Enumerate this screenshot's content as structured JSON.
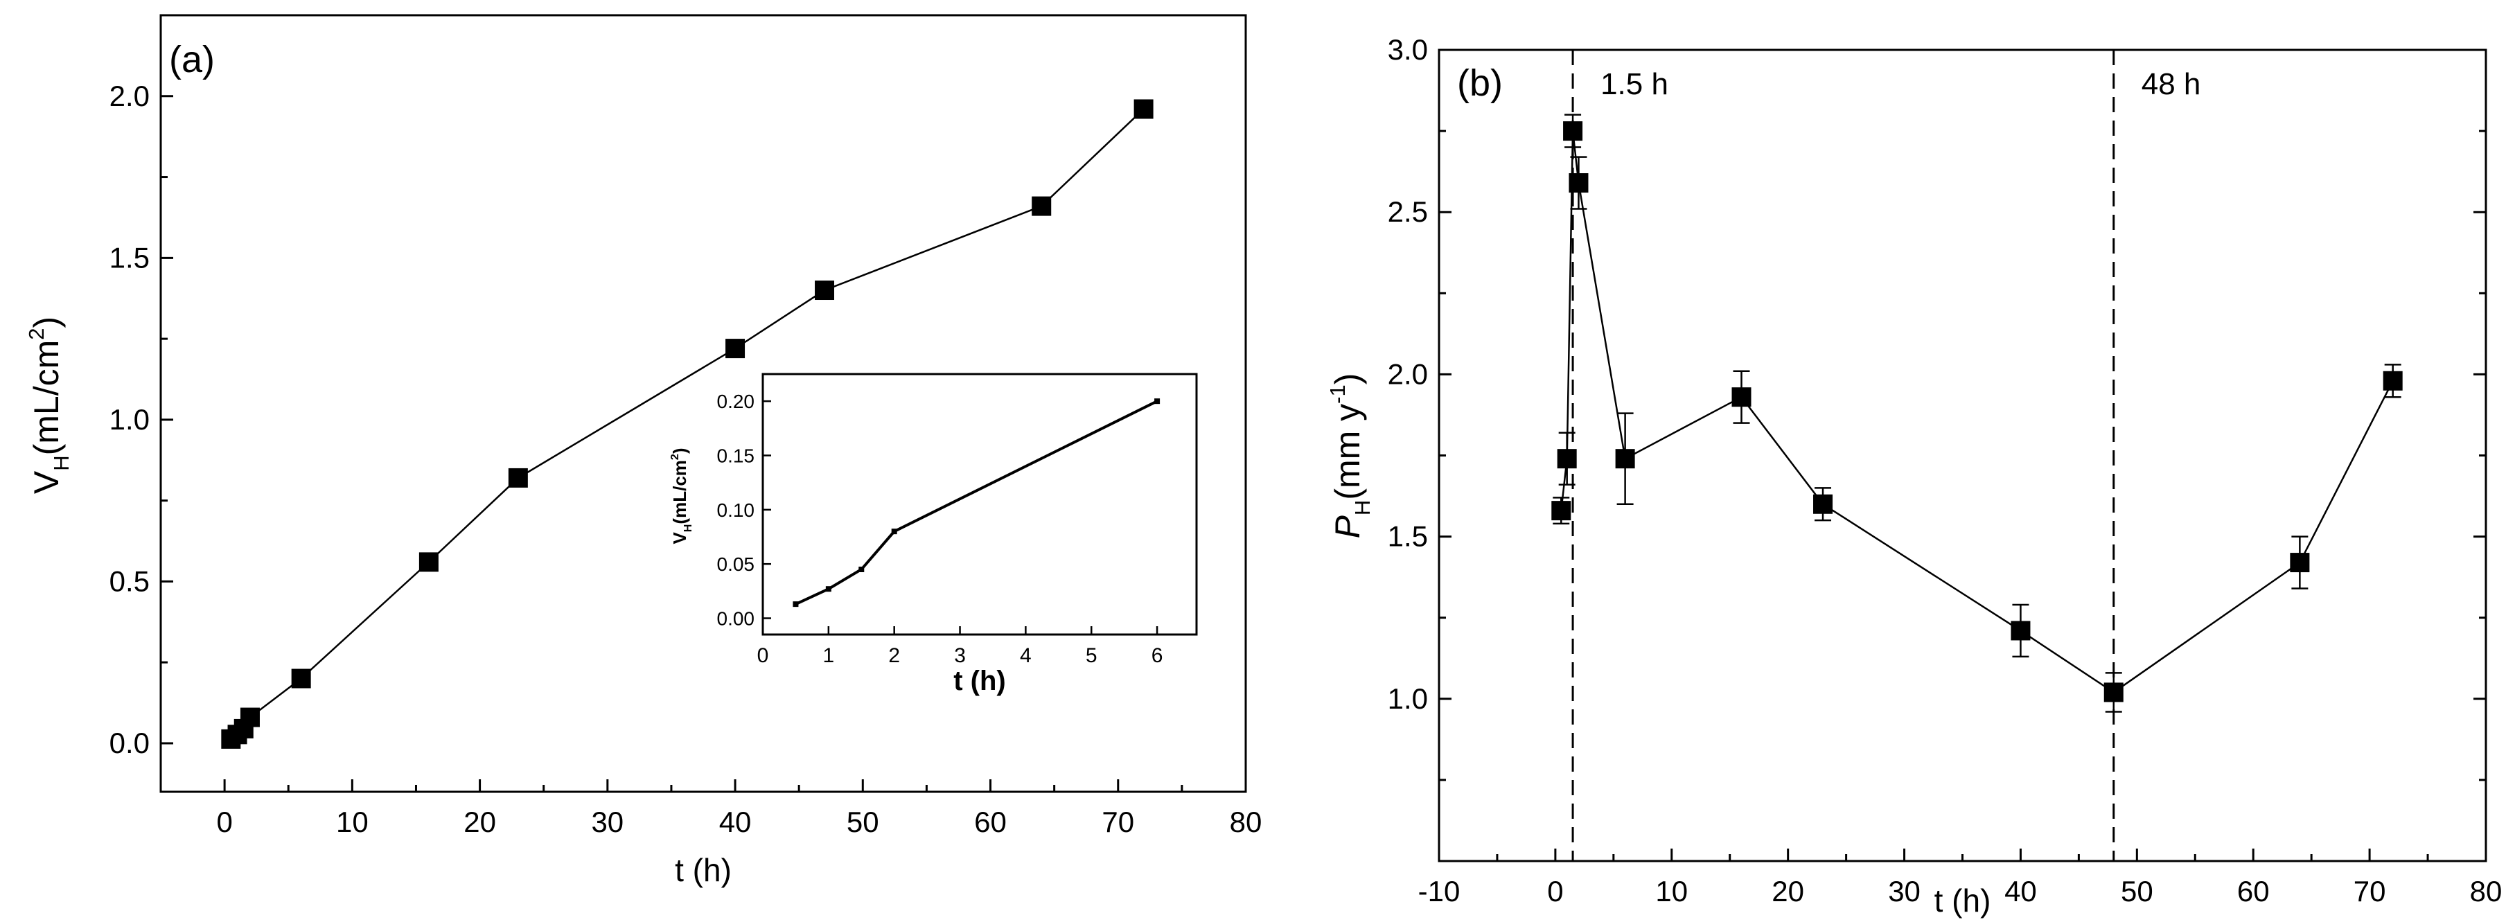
{
  "chart_data": [
    {
      "type": "line",
      "panel_label": "(a)",
      "xlabel": "t (h)",
      "ylabel": "V",
      "ylabel_sub": "H",
      "ylabel_unit": "(mL/cm",
      "ylabel_sup": "2",
      "ylabel_close": ")",
      "xlim": [
        -5,
        80
      ],
      "ylim": [
        -0.15,
        2.25
      ],
      "xticks": [
        "0",
        "10",
        "20",
        "30",
        "40",
        "50",
        "60",
        "70",
        "80"
      ],
      "yticks": [
        "0.0",
        "0.5",
        "1.0",
        "1.5",
        "2.0"
      ],
      "series": [
        {
          "name": "V_H",
          "x": [
            0.5,
            1,
            1.5,
            2,
            6,
            16,
            23,
            40,
            47,
            64,
            72
          ],
          "y": [
            0.013,
            0.027,
            0.045,
            0.08,
            0.2,
            0.56,
            0.82,
            1.22,
            1.4,
            1.66,
            1.96
          ]
        }
      ],
      "inset": {
        "type": "line",
        "xlabel": "t (h)",
        "ylabel": "V",
        "ylabel_sub": "H",
        "ylabel_unit": "(mL/cm",
        "ylabel_sup": "2",
        "ylabel_close": ")",
        "xlim": [
          0,
          6.6
        ],
        "ylim": [
          -0.015,
          0.225
        ],
        "xticks": [
          "0",
          "1",
          "2",
          "3",
          "4",
          "5",
          "6"
        ],
        "yticks": [
          "0.00",
          "0.05",
          "0.10",
          "0.15",
          "0.20"
        ],
        "series": [
          {
            "name": "V_H",
            "x": [
              0.5,
              1,
              1.5,
              2,
              6
            ],
            "y": [
              0.013,
              0.027,
              0.045,
              0.08,
              0.2
            ]
          }
        ]
      }
    },
    {
      "type": "line",
      "panel_label": "(b)",
      "xlabel": "t (h)",
      "ylabel": "P",
      "ylabel_sub": "H",
      "ylabel_unit": "(mm y",
      "ylabel_sup": "-1",
      "ylabel_close": ")",
      "xlim": [
        -10,
        80
      ],
      "ylim": [
        0.5,
        3.0
      ],
      "xticks": [
        "-10",
        "0",
        "10",
        "20",
        "30",
        "40",
        "50",
        "60",
        "70",
        "80"
      ],
      "yticks": [
        "1.0",
        "1.5",
        "2.0",
        "2.5",
        "3.0"
      ],
      "series": [
        {
          "name": "P_H",
          "x": [
            0.5,
            1,
            1.5,
            2,
            6,
            16,
            23,
            40,
            48,
            64,
            72
          ],
          "y": [
            1.58,
            1.74,
            2.75,
            2.59,
            1.74,
            1.93,
            1.6,
            1.21,
            1.02,
            1.42,
            1.98
          ],
          "error": [
            0.04,
            0.08,
            0.05,
            0.08,
            0.14,
            0.08,
            0.05,
            0.08,
            0.06,
            0.08,
            0.05
          ]
        }
      ],
      "vlines": [
        {
          "x": 1.5,
          "label": "1.5 h"
        },
        {
          "x": 48,
          "label": "48 h"
        }
      ]
    }
  ]
}
